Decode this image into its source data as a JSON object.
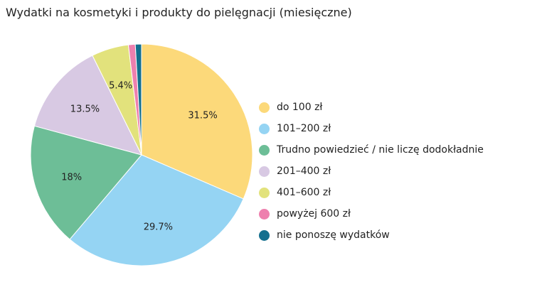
{
  "chart_data": {
    "type": "pie",
    "title": "Wydatki na kosmetyki i produkty do pielęgnacji (miesięczne)",
    "slices": [
      {
        "label": "do 100 zł",
        "value": 31.5,
        "value_label": "31.5%",
        "color": "#FCD97A"
      },
      {
        "label": "101–200 zł",
        "value": 29.7,
        "value_label": "29.7%",
        "color": "#95D4F3"
      },
      {
        "label": "Trudno powiedzieć / nie liczę dodokładnie",
        "value": 18,
        "value_label": "18%",
        "color": "#6DBE97"
      },
      {
        "label": "201–400 zł",
        "value": 13.5,
        "value_label": "13.5%",
        "color": "#D8C9E3"
      },
      {
        "label": "401–600 zł",
        "value": 5.4,
        "value_label": "5.4%",
        "color": "#E2E27C"
      },
      {
        "label": "powyżej 600 zł",
        "value": 1.0,
        "value_label": "",
        "color": "#EE80AE"
      },
      {
        "label": "nie ponoszę wydatków",
        "value": 0.9,
        "value_label": "",
        "color": "#146F8E"
      }
    ],
    "legend_position": "right"
  }
}
